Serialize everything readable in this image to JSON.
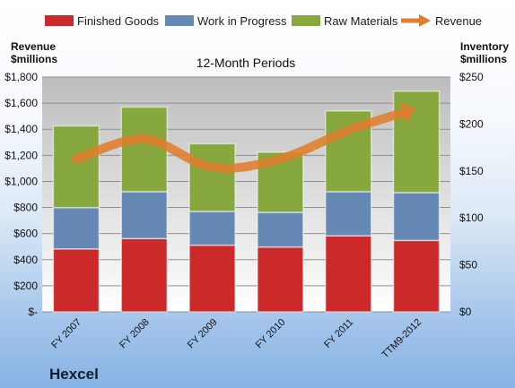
{
  "chart_data": {
    "type": "bar",
    "stacked": true,
    "title": "12-Month Periods",
    "company": "Hexcel",
    "categories": [
      "FY 2007",
      "FY 2008",
      "FY 2009",
      "FY 2010",
      "FY 2011",
      "TTM9-2012"
    ],
    "series": [
      {
        "name": "Finished Goods",
        "axis": "right",
        "color": "#cc2a2a",
        "values": [
          67,
          78,
          71,
          69,
          81,
          76
        ]
      },
      {
        "name": "Work in Progress",
        "axis": "right",
        "color": "#6688b4",
        "values": [
          44,
          50,
          36,
          37,
          47,
          51
        ]
      },
      {
        "name": "Raw Materials",
        "axis": "right",
        "color": "#86a83e",
        "values": [
          87,
          90,
          72,
          64,
          86,
          108
        ]
      },
      {
        "name": "Revenue",
        "axis": "left",
        "type": "line",
        "color": "#e07d2c",
        "values": [
          1171,
          1325,
          1108,
          1173,
          1392,
          1560
        ]
      }
    ],
    "left_axis": {
      "label_line1": "Revenue",
      "label_line2": "$millions",
      "ylim": [
        0,
        1800
      ],
      "ticks": [
        "$-",
        "$200",
        "$400",
        "$600",
        "$800",
        "$1,000",
        "$1,200",
        "$1,400",
        "$1,600",
        "$1,800"
      ]
    },
    "right_axis": {
      "label_line1": "Inventory",
      "label_line2": "$millions",
      "ylim": [
        0,
        250
      ],
      "ticks": [
        "$0",
        "$50",
        "$100",
        "$150",
        "$200",
        "$250"
      ]
    },
    "grid": true,
    "legend_position": "top"
  }
}
